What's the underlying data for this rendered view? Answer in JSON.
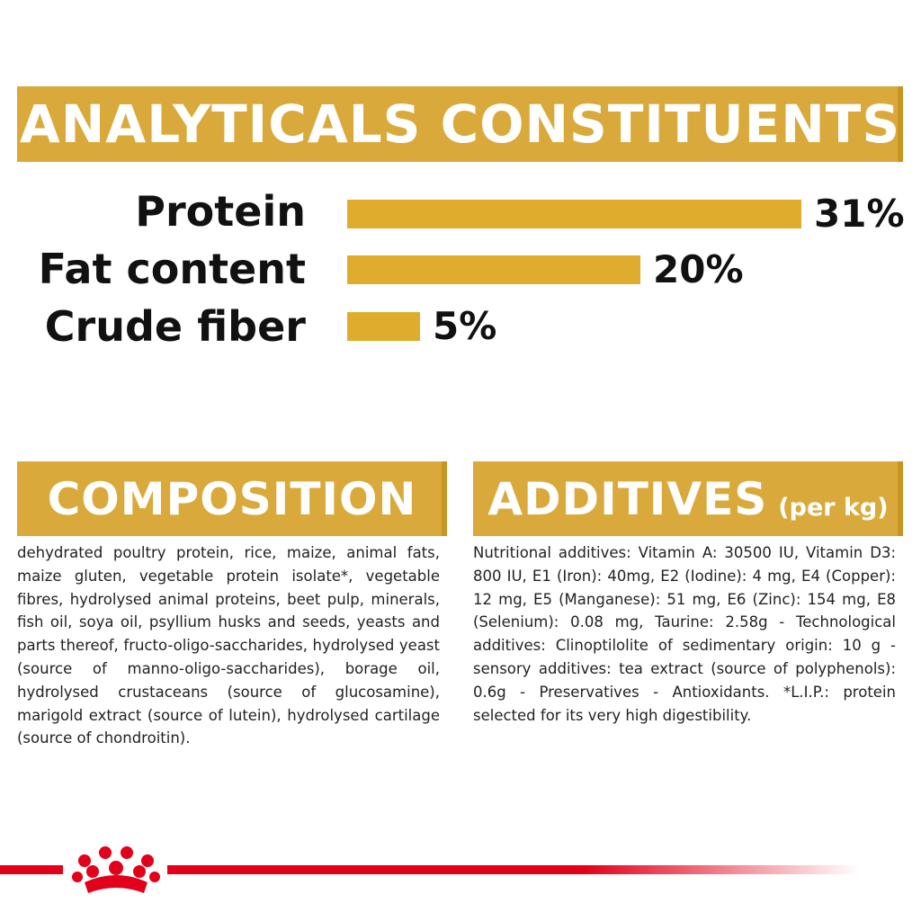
{
  "analytics": {
    "title": "ANALYTICALS CONSTITUENTS",
    "rows": [
      {
        "label": "Protein",
        "value_text": "31%",
        "value": 31
      },
      {
        "label": "Fat content",
        "value_text": "20%",
        "value": 20
      },
      {
        "label": "Crude fiber",
        "value_text": "5%",
        "value": 5
      }
    ]
  },
  "composition": {
    "title": "COMPOSITION",
    "text": "dehydrated poultry protein, rice, maize, animal fats, maize gluten, vegetable protein isolate*, vegetable fibres, hydrolysed animal proteins, beet pulp, minerals, fish oil, soya oil, psyllium husks and seeds, yeasts and parts thereof, fructo-oligo-saccharides, hydrolysed yeast (source of manno-oligo-saccharides), borage oil, hydrolysed crustaceans (source of glucosamine), marigold extract (source of lutein), hydrolysed cartilage (source of chondroitin)."
  },
  "additives": {
    "title": "ADDITIVES",
    "subtitle": "(per kg)",
    "text": "Nutritional additives: Vitamin A: 30500 IU, Vitamin D3: 800 IU, E1 (Iron): 40mg, E2 (Iodine): 4 mg, E4 (Copper): 12 mg, E5 (Manganese): 51 mg, E6 (Zinc): 154 mg, E8 (Selenium): 0.08 mg, Taurine: 2.58g - Technological additives: Clinoptilolite of sedimentary origin: 10 g - sensory additives: tea extract (source of polyphenols): 0.6g - Preservatives - Antioxidants. *L.I.P.: protein selected for its very high digestibility."
  },
  "colors": {
    "banner": "#d9aa3b",
    "bar": "#dfac2d",
    "brand_red": "#e2001a"
  },
  "logo": {
    "icon": "crown-logo-icon"
  }
}
